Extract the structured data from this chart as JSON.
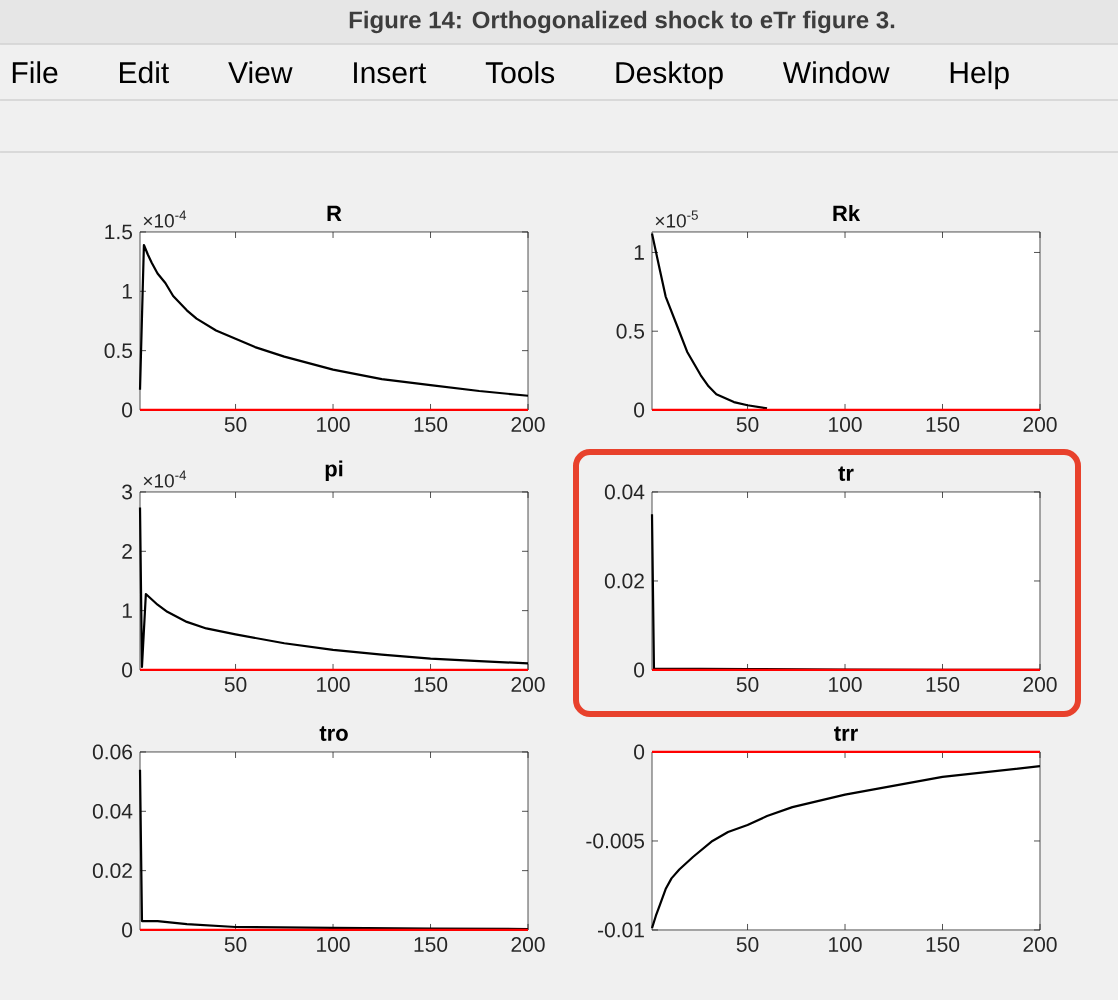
{
  "chart_data": [
    {
      "type": "other",
      "title": "Figure 14: Orthogonalized shock to eTr figure 3.",
      "annotations": [
        "File",
        "Edit",
        "View",
        "Insert",
        "Tools",
        "Desktop",
        "Window",
        "Help"
      ]
    },
    {
      "type": "line",
      "title": "R",
      "series": [
        {
          "color": "#000000",
          "x": [
            1,
            3,
            5,
            7,
            10,
            14,
            18,
            25,
            30,
            40,
            50,
            60,
            75,
            100,
            125,
            150,
            175,
            200
          ],
          "values": [
            0.17,
            1.39,
            1.31,
            1.24,
            1.15,
            1.07,
            0.96,
            0.84,
            0.77,
            0.67,
            0.6,
            0.53,
            0.45,
            0.34,
            0.26,
            0.21,
            0.16,
            0.12
          ]
        },
        {
          "color": "#ff0000",
          "x": [
            1,
            200
          ],
          "values": [
            0,
            0
          ]
        }
      ],
      "xlim": [
        1,
        200
      ],
      "xticks": [
        50,
        100,
        150,
        200
      ],
      "ylim": [
        0,
        1.5
      ],
      "yticks": [
        0,
        0.5,
        1,
        1.5
      ],
      "annotations": [
        "×10$^{-4}$"
      ]
    },
    {
      "type": "line",
      "title": "Rk",
      "series": [
        {
          "color": "#000000",
          "x": [
            1,
            5,
            8,
            14,
            19,
            26,
            30,
            34,
            43,
            50,
            60
          ],
          "values": [
            1.12,
            0.89,
            0.72,
            0.53,
            0.37,
            0.22,
            0.15,
            0.1,
            0.05,
            0.03,
            0.01
          ]
        },
        {
          "color": "#ff0000",
          "x": [
            1,
            200
          ],
          "values": [
            0,
            0
          ]
        }
      ],
      "xlim": [
        1,
        200
      ],
      "xticks": [
        50,
        100,
        150,
        200
      ],
      "ylim": [
        0,
        1.13
      ],
      "yticks": [
        0,
        0.5,
        1
      ],
      "annotations": [
        "×10$^{-5}$"
      ]
    },
    {
      "type": "line",
      "title": "pi",
      "series": [
        {
          "color": "#000000",
          "x": [
            1,
            2,
            4,
            7,
            10,
            15,
            25,
            35,
            50,
            75,
            100,
            125,
            150,
            175,
            200
          ],
          "values": [
            2.74,
            0.05,
            1.28,
            1.19,
            1.1,
            0.98,
            0.81,
            0.7,
            0.6,
            0.45,
            0.34,
            0.26,
            0.19,
            0.15,
            0.11
          ]
        },
        {
          "color": "#ff0000",
          "x": [
            1,
            200
          ],
          "values": [
            0,
            0
          ]
        }
      ],
      "xlim": [
        1,
        200
      ],
      "xticks": [
        50,
        100,
        150,
        200
      ],
      "ylim": [
        0,
        3
      ],
      "yticks": [
        0,
        1,
        2,
        3
      ],
      "annotations": [
        "×10$^{-4}$"
      ]
    },
    {
      "type": "line",
      "title": "tr",
      "series": [
        {
          "color": "#000000",
          "x": [
            1,
            2,
            50,
            100,
            150,
            200
          ],
          "values": [
            0.035,
            0.0003,
            0.0002,
            0.0001,
            0,
            0
          ]
        },
        {
          "color": "#ff0000",
          "x": [
            1,
            200
          ],
          "values": [
            0,
            0
          ]
        }
      ],
      "xlim": [
        1,
        200
      ],
      "xticks": [
        50,
        100,
        150,
        200
      ],
      "ylim": [
        0,
        0.04
      ],
      "yticks": [
        0,
        0.02,
        0.04
      ]
    },
    {
      "type": "line",
      "title": "tro",
      "series": [
        {
          "color": "#000000",
          "x": [
            1,
            2,
            10,
            25,
            50,
            100,
            150,
            200
          ],
          "values": [
            0.054,
            0.003,
            0.003,
            0.002,
            0.001,
            0.0007,
            0.0005,
            0.0003
          ]
        },
        {
          "color": "#ff0000",
          "x": [
            1,
            200
          ],
          "values": [
            0,
            0
          ]
        }
      ],
      "xlim": [
        1,
        200
      ],
      "xticks": [
        50,
        100,
        150,
        200
      ],
      "ylim": [
        0,
        0.06
      ],
      "yticks": [
        0,
        0.02,
        0.04,
        0.06
      ]
    },
    {
      "type": "line",
      "title": "trr",
      "series": [
        {
          "color": "#000000",
          "x": [
            1,
            3,
            5,
            8,
            11,
            15,
            22,
            32,
            40,
            50,
            60,
            73,
            100,
            125,
            150,
            175,
            200
          ],
          "values": [
            -0.0099,
            -0.0092,
            -0.0086,
            -0.0077,
            -0.0071,
            -0.0066,
            -0.0059,
            -0.005,
            -0.0045,
            -0.0041,
            -0.0036,
            -0.0031,
            -0.0024,
            -0.0019,
            -0.0014,
            -0.0011,
            -0.0008
          ]
        },
        {
          "color": "#ff0000",
          "x": [
            1,
            200
          ],
          "values": [
            0,
            0
          ]
        }
      ],
      "xlim": [
        1,
        200
      ],
      "xticks": [
        50,
        100,
        150,
        200
      ],
      "ylim": [
        -0.01,
        0
      ],
      "yticks": [
        -0.01,
        -0.005,
        0
      ]
    }
  ]
}
